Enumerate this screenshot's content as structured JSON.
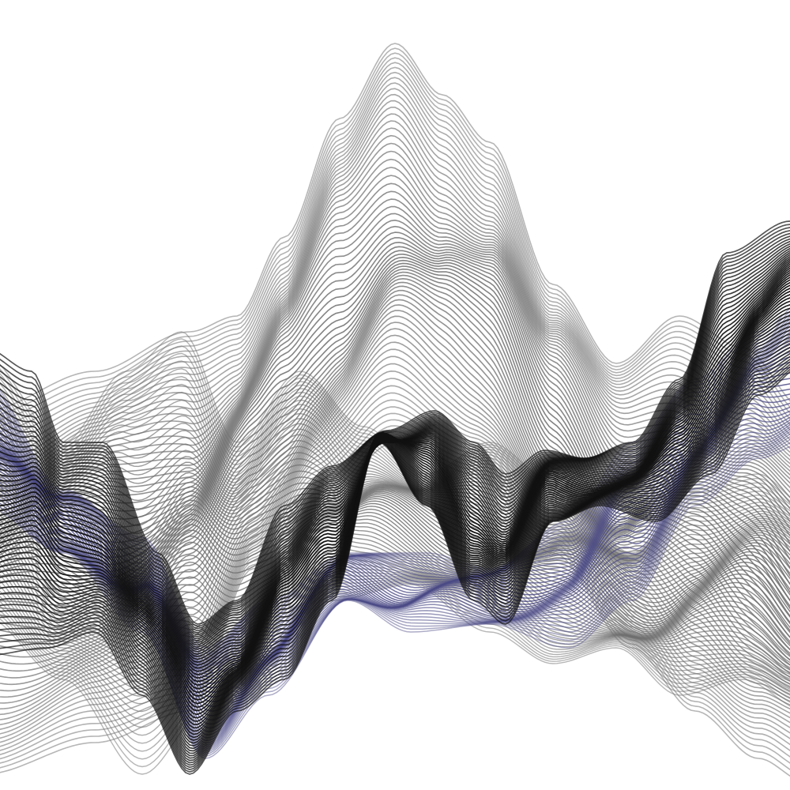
{
  "artwork": {
    "kind": "generative line-ribbon landscape",
    "background_color": "#ffffff",
    "layers": [
      {
        "name": "back-mountain-ribbon",
        "color": "#7a7a7a",
        "tone": "gray"
      },
      {
        "name": "mid-gray-ribbon",
        "color": "#6f6f6f",
        "tone": "gray"
      },
      {
        "name": "indigo-ribbon",
        "color": "#4b4a86",
        "tone": "indigo"
      },
      {
        "name": "front-black-ribbon",
        "color": "#111111",
        "tone": "black"
      }
    ]
  }
}
